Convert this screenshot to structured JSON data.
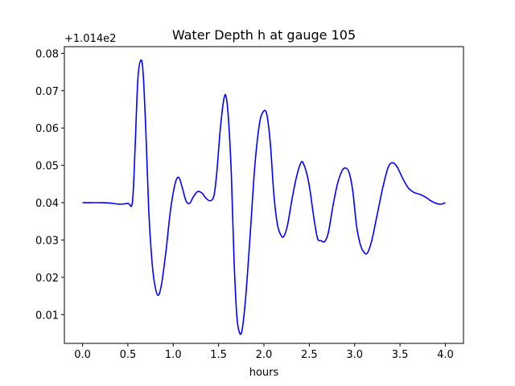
{
  "chart_data": {
    "type": "line",
    "title": "Water Depth h at gauge 105",
    "xlabel": "hours",
    "ylabel": "",
    "offset_label": "+1.014e2",
    "xlim": [
      -0.2,
      4.2
    ],
    "ylim": [
      0.0023,
      0.0818
    ],
    "xticks": [
      "0.0",
      "0.5",
      "1.0",
      "1.5",
      "2.0",
      "2.5",
      "3.0",
      "3.5",
      "4.0"
    ],
    "yticks": [
      "0.01",
      "0.02",
      "0.03",
      "0.04",
      "0.05",
      "0.06",
      "0.07",
      "0.08"
    ],
    "grid": false,
    "legend": "none",
    "series": [
      {
        "color": "#0000ff",
        "points": [
          [
            0.0,
            0.04
          ],
          [
            0.1,
            0.04
          ],
          [
            0.2,
            0.04
          ],
          [
            0.3,
            0.0399
          ],
          [
            0.4,
            0.0396
          ],
          [
            0.5,
            0.0398
          ],
          [
            0.55,
            0.0402
          ],
          [
            0.58,
            0.055
          ],
          [
            0.61,
            0.073
          ],
          [
            0.645,
            0.0782
          ],
          [
            0.67,
            0.074
          ],
          [
            0.7,
            0.058
          ],
          [
            0.73,
            0.038
          ],
          [
            0.76,
            0.026
          ],
          [
            0.79,
            0.019
          ],
          [
            0.83,
            0.0152
          ],
          [
            0.87,
            0.018
          ],
          [
            0.92,
            0.027
          ],
          [
            0.97,
            0.038
          ],
          [
            1.02,
            0.045
          ],
          [
            1.06,
            0.0468
          ],
          [
            1.1,
            0.044
          ],
          [
            1.14,
            0.0405
          ],
          [
            1.18,
            0.0398
          ],
          [
            1.22,
            0.0415
          ],
          [
            1.27,
            0.043
          ],
          [
            1.32,
            0.0425
          ],
          [
            1.36,
            0.0412
          ],
          [
            1.41,
            0.0405
          ],
          [
            1.45,
            0.042
          ],
          [
            1.48,
            0.048
          ],
          [
            1.52,
            0.06
          ],
          [
            1.56,
            0.068
          ],
          [
            1.585,
            0.0682
          ],
          [
            1.61,
            0.062
          ],
          [
            1.64,
            0.048
          ],
          [
            1.67,
            0.025
          ],
          [
            1.7,
            0.01
          ],
          [
            1.73,
            0.0052
          ],
          [
            1.76,
            0.006
          ],
          [
            1.8,
            0.015
          ],
          [
            1.85,
            0.032
          ],
          [
            1.9,
            0.05
          ],
          [
            1.95,
            0.061
          ],
          [
            1.99,
            0.0643
          ],
          [
            2.03,
            0.0638
          ],
          [
            2.07,
            0.056
          ],
          [
            2.11,
            0.042
          ],
          [
            2.15,
            0.034
          ],
          [
            2.19,
            0.0312
          ],
          [
            2.22,
            0.031
          ],
          [
            2.26,
            0.034
          ],
          [
            2.31,
            0.041
          ],
          [
            2.36,
            0.047
          ],
          [
            2.41,
            0.0508
          ],
          [
            2.44,
            0.0502
          ],
          [
            2.48,
            0.047
          ],
          [
            2.51,
            0.043
          ],
          [
            2.55,
            0.036
          ],
          [
            2.59,
            0.0305
          ],
          [
            2.63,
            0.0298
          ],
          [
            2.67,
            0.0296
          ],
          [
            2.71,
            0.032
          ],
          [
            2.76,
            0.039
          ],
          [
            2.81,
            0.045
          ],
          [
            2.86,
            0.0485
          ],
          [
            2.9,
            0.0493
          ],
          [
            2.94,
            0.048
          ],
          [
            2.98,
            0.043
          ],
          [
            3.02,
            0.034
          ],
          [
            3.06,
            0.029
          ],
          [
            3.1,
            0.0268
          ],
          [
            3.14,
            0.0265
          ],
          [
            3.19,
            0.03
          ],
          [
            3.25,
            0.037
          ],
          [
            3.31,
            0.044
          ],
          [
            3.37,
            0.0495
          ],
          [
            3.42,
            0.0507
          ],
          [
            3.47,
            0.0495
          ],
          [
            3.53,
            0.0465
          ],
          [
            3.59,
            0.044
          ],
          [
            3.65,
            0.0428
          ],
          [
            3.72,
            0.0422
          ],
          [
            3.78,
            0.0415
          ],
          [
            3.84,
            0.0405
          ],
          [
            3.9,
            0.0398
          ],
          [
            3.95,
            0.0396
          ],
          [
            4.0,
            0.04
          ]
        ]
      }
    ]
  }
}
